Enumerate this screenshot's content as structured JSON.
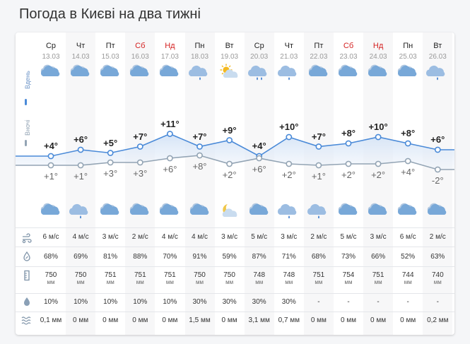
{
  "title": "Погода в Києві на два тижні",
  "side": {
    "day_label": "Вдень",
    "night_label": "Вночі"
  },
  "colors": {
    "day_line": "#4a8ad8",
    "night_line": "#93a4b4",
    "weekend": "#d42020"
  },
  "units": {
    "pressure": "мм"
  },
  "days": [
    {
      "name": "Ср",
      "date": "13.03",
      "weekend": false,
      "day_icon": "cloudy-icon",
      "night_icon": "cloudy-icon",
      "t_day": "+4°",
      "t_night": "+1°",
      "t_day_v": 4,
      "t_night_v": 1,
      "wind": "6 м/с",
      "humidity": "68%",
      "pressure": "750",
      "precip_prob": "10%",
      "precip": "0,1 мм"
    },
    {
      "name": "Чт",
      "date": "14.03",
      "weekend": false,
      "day_icon": "cloudy-icon",
      "night_icon": "cloud-rain-icon",
      "t_day": "+6°",
      "t_night": "+1°",
      "t_day_v": 6,
      "t_night_v": 1,
      "wind": "4 м/с",
      "humidity": "69%",
      "pressure": "750",
      "precip_prob": "10%",
      "precip": "0 мм"
    },
    {
      "name": "Пт",
      "date": "15.03",
      "weekend": false,
      "day_icon": "cloudy-icon",
      "night_icon": "cloudy-icon",
      "t_day": "+5°",
      "t_night": "+3°",
      "t_day_v": 5,
      "t_night_v": 3,
      "wind": "3 м/с",
      "humidity": "81%",
      "pressure": "751",
      "precip_prob": "10%",
      "precip": "0 мм"
    },
    {
      "name": "Сб",
      "date": "16.03",
      "weekend": true,
      "day_icon": "cloudy-icon",
      "night_icon": "cloudy-icon",
      "t_day": "+7°",
      "t_night": "+3°",
      "t_day_v": 7,
      "t_night_v": 3,
      "wind": "2 м/с",
      "humidity": "88%",
      "pressure": "751",
      "precip_prob": "10%",
      "precip": "0 мм"
    },
    {
      "name": "Нд",
      "date": "17.03",
      "weekend": true,
      "day_icon": "cloudy-icon",
      "night_icon": "cloudy-icon",
      "t_day": "+11°",
      "t_night": "+6°",
      "t_day_v": 11,
      "t_night_v": 6,
      "wind": "4 м/с",
      "humidity": "70%",
      "pressure": "751",
      "precip_prob": "10%",
      "precip": "0 мм"
    },
    {
      "name": "Пн",
      "date": "18.03",
      "weekend": false,
      "day_icon": "cloud-rain-icon",
      "night_icon": "cloudy-icon",
      "t_day": "+7°",
      "t_night": "+8°",
      "t_day_v": 7,
      "t_night_v": 8,
      "wind": "4 м/с",
      "humidity": "91%",
      "pressure": "750",
      "precip_prob": "30%",
      "precip": "1,5 мм"
    },
    {
      "name": "Вт",
      "date": "19.03",
      "weekend": false,
      "day_icon": "sun-cloud-icon",
      "night_icon": "moon-cloud-icon",
      "t_day": "+9°",
      "t_night": "+2°",
      "t_day_v": 9,
      "t_night_v": 2,
      "wind": "3 м/с",
      "humidity": "59%",
      "pressure": "750",
      "precip_prob": "30%",
      "precip": "0 мм"
    },
    {
      "name": "Ср",
      "date": "20.03",
      "weekend": false,
      "day_icon": "cloud-heavy-rain-icon",
      "night_icon": "cloudy-icon",
      "t_day": "+4°",
      "t_night": "+6°",
      "t_day_v": 4,
      "t_night_v": 6,
      "wind": "5 м/с",
      "humidity": "87%",
      "pressure": "748",
      "precip_prob": "30%",
      "precip": "3,1 мм"
    },
    {
      "name": "Чт",
      "date": "21.03",
      "weekend": false,
      "day_icon": "cloud-rain-icon",
      "night_icon": "cloud-rain-icon",
      "t_day": "+10°",
      "t_night": "+2°",
      "t_day_v": 10,
      "t_night_v": 2,
      "wind": "3 м/с",
      "humidity": "71%",
      "pressure": "748",
      "precip_prob": "30%",
      "precip": "0,7 мм"
    },
    {
      "name": "Пт",
      "date": "22.03",
      "weekend": false,
      "day_icon": "cloudy-icon",
      "night_icon": "cloud-rain-icon",
      "t_day": "+7°",
      "t_night": "+1°",
      "t_day_v": 7,
      "t_night_v": 1,
      "wind": "2 м/с",
      "humidity": "68%",
      "pressure": "751",
      "precip_prob": "-",
      "precip": "0 мм"
    },
    {
      "name": "Сб",
      "date": "23.03",
      "weekend": true,
      "day_icon": "cloudy-icon",
      "night_icon": "cloudy-icon",
      "t_day": "+8°",
      "t_night": "+2°",
      "t_day_v": 8,
      "t_night_v": 2,
      "wind": "5 м/с",
      "humidity": "73%",
      "pressure": "754",
      "precip_prob": "-",
      "precip": "0 мм"
    },
    {
      "name": "Нд",
      "date": "24.03",
      "weekend": true,
      "day_icon": "cloudy-icon",
      "night_icon": "cloudy-icon",
      "t_day": "+10°",
      "t_night": "+2°",
      "t_day_v": 10,
      "t_night_v": 2,
      "wind": "3 м/с",
      "humidity": "66%",
      "pressure": "751",
      "precip_prob": "-",
      "precip": "0 мм"
    },
    {
      "name": "Пн",
      "date": "25.03",
      "weekend": false,
      "day_icon": "cloudy-icon",
      "night_icon": "cloudy-icon",
      "t_day": "+8°",
      "t_night": "+4°",
      "t_day_v": 8,
      "t_night_v": 4,
      "wind": "6 м/с",
      "humidity": "52%",
      "pressure": "744",
      "precip_prob": "-",
      "precip": "0 мм"
    },
    {
      "name": "Вт",
      "date": "26.03",
      "weekend": false,
      "day_icon": "cloud-rain-icon",
      "night_icon": "cloudy-icon",
      "t_day": "+6°",
      "t_night": "-2°",
      "t_day_v": 6,
      "t_night_v": -2,
      "wind": "2 м/с",
      "humidity": "63%",
      "pressure": "740",
      "precip_prob": "-",
      "precip": "0,2 мм"
    }
  ],
  "row_icons": [
    "wind-icon",
    "humidity-icon",
    "pressure-icon",
    "precip-probability-icon",
    "precipitation-icon"
  ]
}
